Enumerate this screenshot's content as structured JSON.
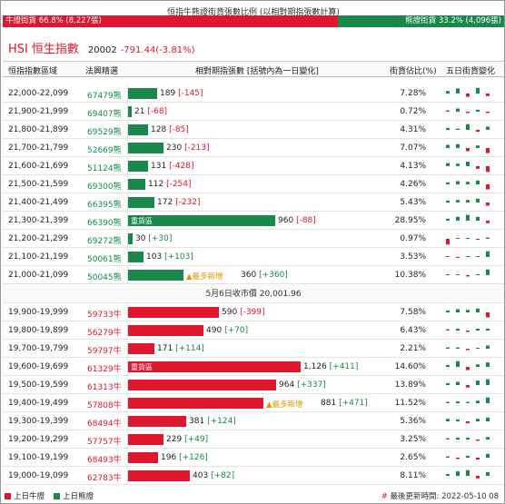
{
  "ratio": {
    "title": "恒指牛熊證街貨張數比例 (以相對期指張數計算)",
    "bull_label": "牛證街貨 66.8% (8,227張)",
    "bear_label": "熊證街貨 33.2% (4,096張)",
    "bull_pct": 0.668
  },
  "index": {
    "code": "HSI",
    "name": "恒生指數",
    "value": "20002",
    "change": "-791.44(-3.81%)"
  },
  "header": {
    "range": "恒指指數區域",
    "pick": "法興精選",
    "qty": "相對期指張數 [括號內為一日變化]",
    "pct": "街貨佔比(%)",
    "five": "五日街貨變化"
  },
  "colors": {
    "bull": "#e0152e",
    "bear": "#18894a",
    "new": "#e69500"
  },
  "scale_max": 1126,
  "bear_rows": [
    {
      "range": "22,000-22,099",
      "code": "67479熊",
      "qty": 189,
      "qty_text": "189",
      "chg": "[-145]",
      "chg_up": false,
      "pct": "7.28%",
      "spark": [
        0.4,
        0.8,
        -0.5,
        0.9,
        -0.4
      ],
      "tag": "",
      "label": ""
    },
    {
      "range": "21,900-21,999",
      "code": "69407熊",
      "qty": 21,
      "qty_text": "21",
      "chg": "[-68]",
      "chg_up": false,
      "pct": "0.72%",
      "spark": [
        0.2,
        0.5,
        -0.2,
        0.3,
        -0.2
      ],
      "tag": "",
      "label": ""
    },
    {
      "range": "21,800-21,899",
      "code": "69529熊",
      "qty": 128,
      "qty_text": "128",
      "chg": "[-85]",
      "chg_up": false,
      "pct": "4.31%",
      "spark": [
        0.3,
        0.2,
        0.9,
        -0.3,
        0.5
      ],
      "tag": "",
      "label": ""
    },
    {
      "range": "21,700-21,799",
      "code": "52669熊",
      "qty": 230,
      "qty_text": "230",
      "chg": "[-213]",
      "chg_up": false,
      "pct": "7.07%",
      "spark": [
        0.5,
        0.6,
        -0.5,
        0.4,
        -0.8
      ],
      "tag": "",
      "label": ""
    },
    {
      "range": "21,600-21,699",
      "code": "51124熊",
      "qty": 131,
      "qty_text": "131",
      "chg": "[-428]",
      "chg_up": false,
      "pct": "4.13%",
      "spark": [
        0.5,
        0.4,
        0.7,
        -0.4,
        -0.9
      ],
      "tag": "",
      "label": ""
    },
    {
      "range": "21,500-21,599",
      "code": "69300熊",
      "qty": 112,
      "qty_text": "112",
      "chg": "[-254]",
      "chg_up": false,
      "pct": "4.26%",
      "spark": [
        0.3,
        0.5,
        0.4,
        0.6,
        -0.8
      ],
      "tag": "",
      "label": ""
    },
    {
      "range": "21,400-21,499",
      "code": "66395熊",
      "qty": 172,
      "qty_text": "172",
      "chg": "[-232]",
      "chg_up": false,
      "pct": "5.43%",
      "spark": [
        0.3,
        0.4,
        0.4,
        0.6,
        -0.5
      ],
      "tag": "",
      "label": ""
    },
    {
      "range": "21,300-21,399",
      "code": "66390熊",
      "qty": 960,
      "qty_text": "960",
      "chg": "[-88]",
      "chg_up": false,
      "pct": "28.95%",
      "spark": [
        0.3,
        0.6,
        0.9,
        0.6,
        -0.4
      ],
      "tag": "",
      "label": "重貨區"
    },
    {
      "range": "21,200-21,299",
      "code": "69272熊",
      "qty": 30,
      "qty_text": "30",
      "chg": "[+30]",
      "chg_up": true,
      "pct": "0.97%",
      "spark": [
        -0.9,
        0.1,
        0.1,
        -0.1,
        0.2
      ],
      "tag": "",
      "label": ""
    },
    {
      "range": "21,100-21,199",
      "code": "50061熊",
      "qty": 103,
      "qty_text": "103",
      "chg": "[+103]",
      "chg_up": true,
      "pct": "3.53%",
      "spark": [
        0.0,
        -0.1,
        0.0,
        0.0,
        0.9
      ],
      "tag": "",
      "label": ""
    },
    {
      "range": "21,000-21,099",
      "code": "50045熊",
      "qty": 360,
      "qty_text": "360",
      "chg": "[+360]",
      "chg_up": true,
      "pct": "10.38%",
      "spark": [
        0.0,
        0.0,
        -0.2,
        0.0,
        0.9
      ],
      "tag": "▲最多新增",
      "label": ""
    }
  ],
  "mid_label": "5月6日收市價 20,001.96",
  "bull_rows": [
    {
      "range": "19,900-19,999",
      "code": "59733牛",
      "qty": 590,
      "qty_text": "590",
      "chg": "[-399]",
      "chg_up": false,
      "pct": "7.58%",
      "spark": [
        0.3,
        0.5,
        0.4,
        0.6,
        -0.8
      ],
      "tag": "",
      "label": ""
    },
    {
      "range": "19,800-19,899",
      "code": "56279牛",
      "qty": 490,
      "qty_text": "490",
      "chg": "[+70]",
      "chg_up": true,
      "pct": "6.43%",
      "spark": [
        0.2,
        0.3,
        -0.2,
        0.3,
        0.3
      ],
      "tag": "",
      "label": ""
    },
    {
      "range": "19,700-19,799",
      "code": "59797牛",
      "qty": 171,
      "qty_text": "171",
      "chg": "[+114]",
      "chg_up": true,
      "pct": "2.21%",
      "spark": [
        0.2,
        0.2,
        -0.2,
        0.1,
        0.5
      ],
      "tag": "",
      "label": ""
    },
    {
      "range": "19,600-19,699",
      "code": "61329牛",
      "qty": 1126,
      "qty_text": "1,126",
      "chg": "[+411]",
      "chg_up": true,
      "pct": "14.60%",
      "spark": [
        0.3,
        0.9,
        -0.5,
        0.4,
        0.7
      ],
      "tag": "",
      "label": "重貨區"
    },
    {
      "range": "19,500-19,599",
      "code": "61313牛",
      "qty": 964,
      "qty_text": "964",
      "chg": "[+337]",
      "chg_up": true,
      "pct": "13.89%",
      "spark": [
        0.3,
        0.5,
        -0.4,
        0.7,
        0.9
      ],
      "tag": "",
      "label": ""
    },
    {
      "range": "19,400-19,499",
      "code": "57808牛",
      "qty": 881,
      "qty_text": "881",
      "chg": "[+471]",
      "chg_up": true,
      "pct": "11.52%",
      "spark": [
        0.2,
        0.3,
        0.2,
        0.4,
        0.9
      ],
      "tag": "▲最多新增",
      "label": ""
    },
    {
      "range": "19,300-19,399",
      "code": "68494牛",
      "qty": 381,
      "qty_text": "381",
      "chg": "[+124]",
      "chg_up": true,
      "pct": "5.36%",
      "spark": [
        0.4,
        0.3,
        -0.3,
        0.4,
        0.6
      ],
      "tag": "",
      "label": ""
    },
    {
      "range": "19,200-19,299",
      "code": "57757牛",
      "qty": 229,
      "qty_text": "229",
      "chg": "[+49]",
      "chg_up": true,
      "pct": "3.25%",
      "spark": [
        0.2,
        0.3,
        0.3,
        -0.2,
        0.4
      ],
      "tag": "",
      "label": ""
    },
    {
      "range": "19,100-19,199",
      "code": "68493牛",
      "qty": 196,
      "qty_text": "196",
      "chg": "[+126]",
      "chg_up": true,
      "pct": "2.65%",
      "spark": [
        0.2,
        -0.2,
        0.3,
        -0.3,
        0.6
      ],
      "tag": "",
      "label": ""
    },
    {
      "range": "19,000-19,099",
      "code": "62783牛",
      "qty": 403,
      "qty_text": "403",
      "chg": "[+82]",
      "chg_up": true,
      "pct": "8.11%",
      "spark": [
        0.3,
        0.7,
        0.9,
        -0.4,
        0.6
      ],
      "tag": "",
      "label": ""
    }
  ],
  "legend": {
    "bull": "上日牛證",
    "bear": "上日熊證"
  },
  "update": {
    "hash": "#",
    "text": "最後更新時間: 2022-05-10 08"
  }
}
